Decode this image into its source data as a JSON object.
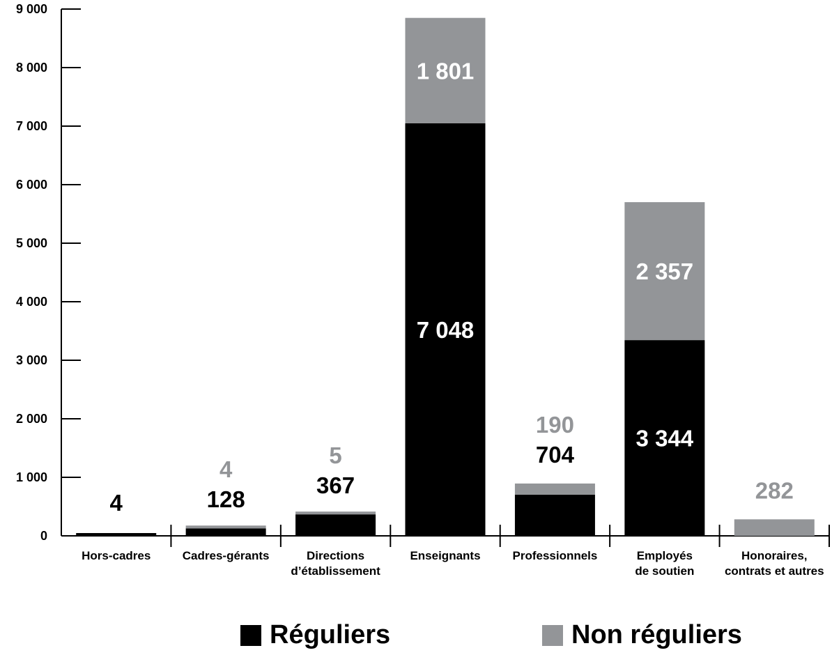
{
  "chart_data": {
    "type": "bar",
    "stacked": true,
    "categories": [
      [
        "Hors-cadres"
      ],
      [
        "Cadres-gérants"
      ],
      [
        "Directions",
        "d’établissement"
      ],
      [
        "Enseignants"
      ],
      [
        "Professionnels"
      ],
      [
        "Employés",
        "de soutien"
      ],
      [
        "Honoraires,",
        "contrats et autres"
      ]
    ],
    "series": [
      {
        "name": "Réguliers",
        "color": "#000000",
        "values": [
          4,
          128,
          367,
          7048,
          704,
          3344,
          0
        ]
      },
      {
        "name": "Non réguliers",
        "color": "#939598",
        "values": [
          0,
          4,
          5,
          1801,
          190,
          2357,
          282
        ]
      }
    ],
    "data_labels": [
      [
        {
          "series": 0,
          "text": "4",
          "position": "above"
        }
      ],
      [
        {
          "series": 1,
          "text": "4",
          "position": "above"
        },
        {
          "series": 0,
          "text": "128",
          "position": "above"
        }
      ],
      [
        {
          "series": 1,
          "text": "5",
          "position": "above"
        },
        {
          "series": 0,
          "text": "367",
          "position": "above"
        }
      ],
      [
        {
          "series": 1,
          "text": "1 801",
          "position": "inside"
        },
        {
          "series": 0,
          "text": "7 048",
          "position": "inside"
        }
      ],
      [
        {
          "series": 1,
          "text": "190",
          "position": "above"
        },
        {
          "series": 0,
          "text": "704",
          "position": "above"
        }
      ],
      [
        {
          "series": 1,
          "text": "2 357",
          "position": "inside"
        },
        {
          "series": 0,
          "text": "3 344",
          "position": "inside"
        }
      ],
      [
        {
          "series": 1,
          "text": "282",
          "position": "above"
        }
      ]
    ],
    "yticks": [
      0,
      1000,
      2000,
      3000,
      4000,
      5000,
      6000,
      7000,
      8000,
      9000
    ],
    "ytick_labels": [
      "0",
      "1 000",
      "2 000",
      "3 000",
      "4 000",
      "5 000",
      "6 000",
      "7 000",
      "8 000",
      "9 000"
    ],
    "ylim": [
      0,
      9000
    ],
    "title": "",
    "xlabel": "",
    "ylabel": "",
    "grid": false,
    "legend_position": "bottom"
  },
  "legend": {
    "regular_label": "Réguliers",
    "nonregular_label": "Non réguliers"
  }
}
